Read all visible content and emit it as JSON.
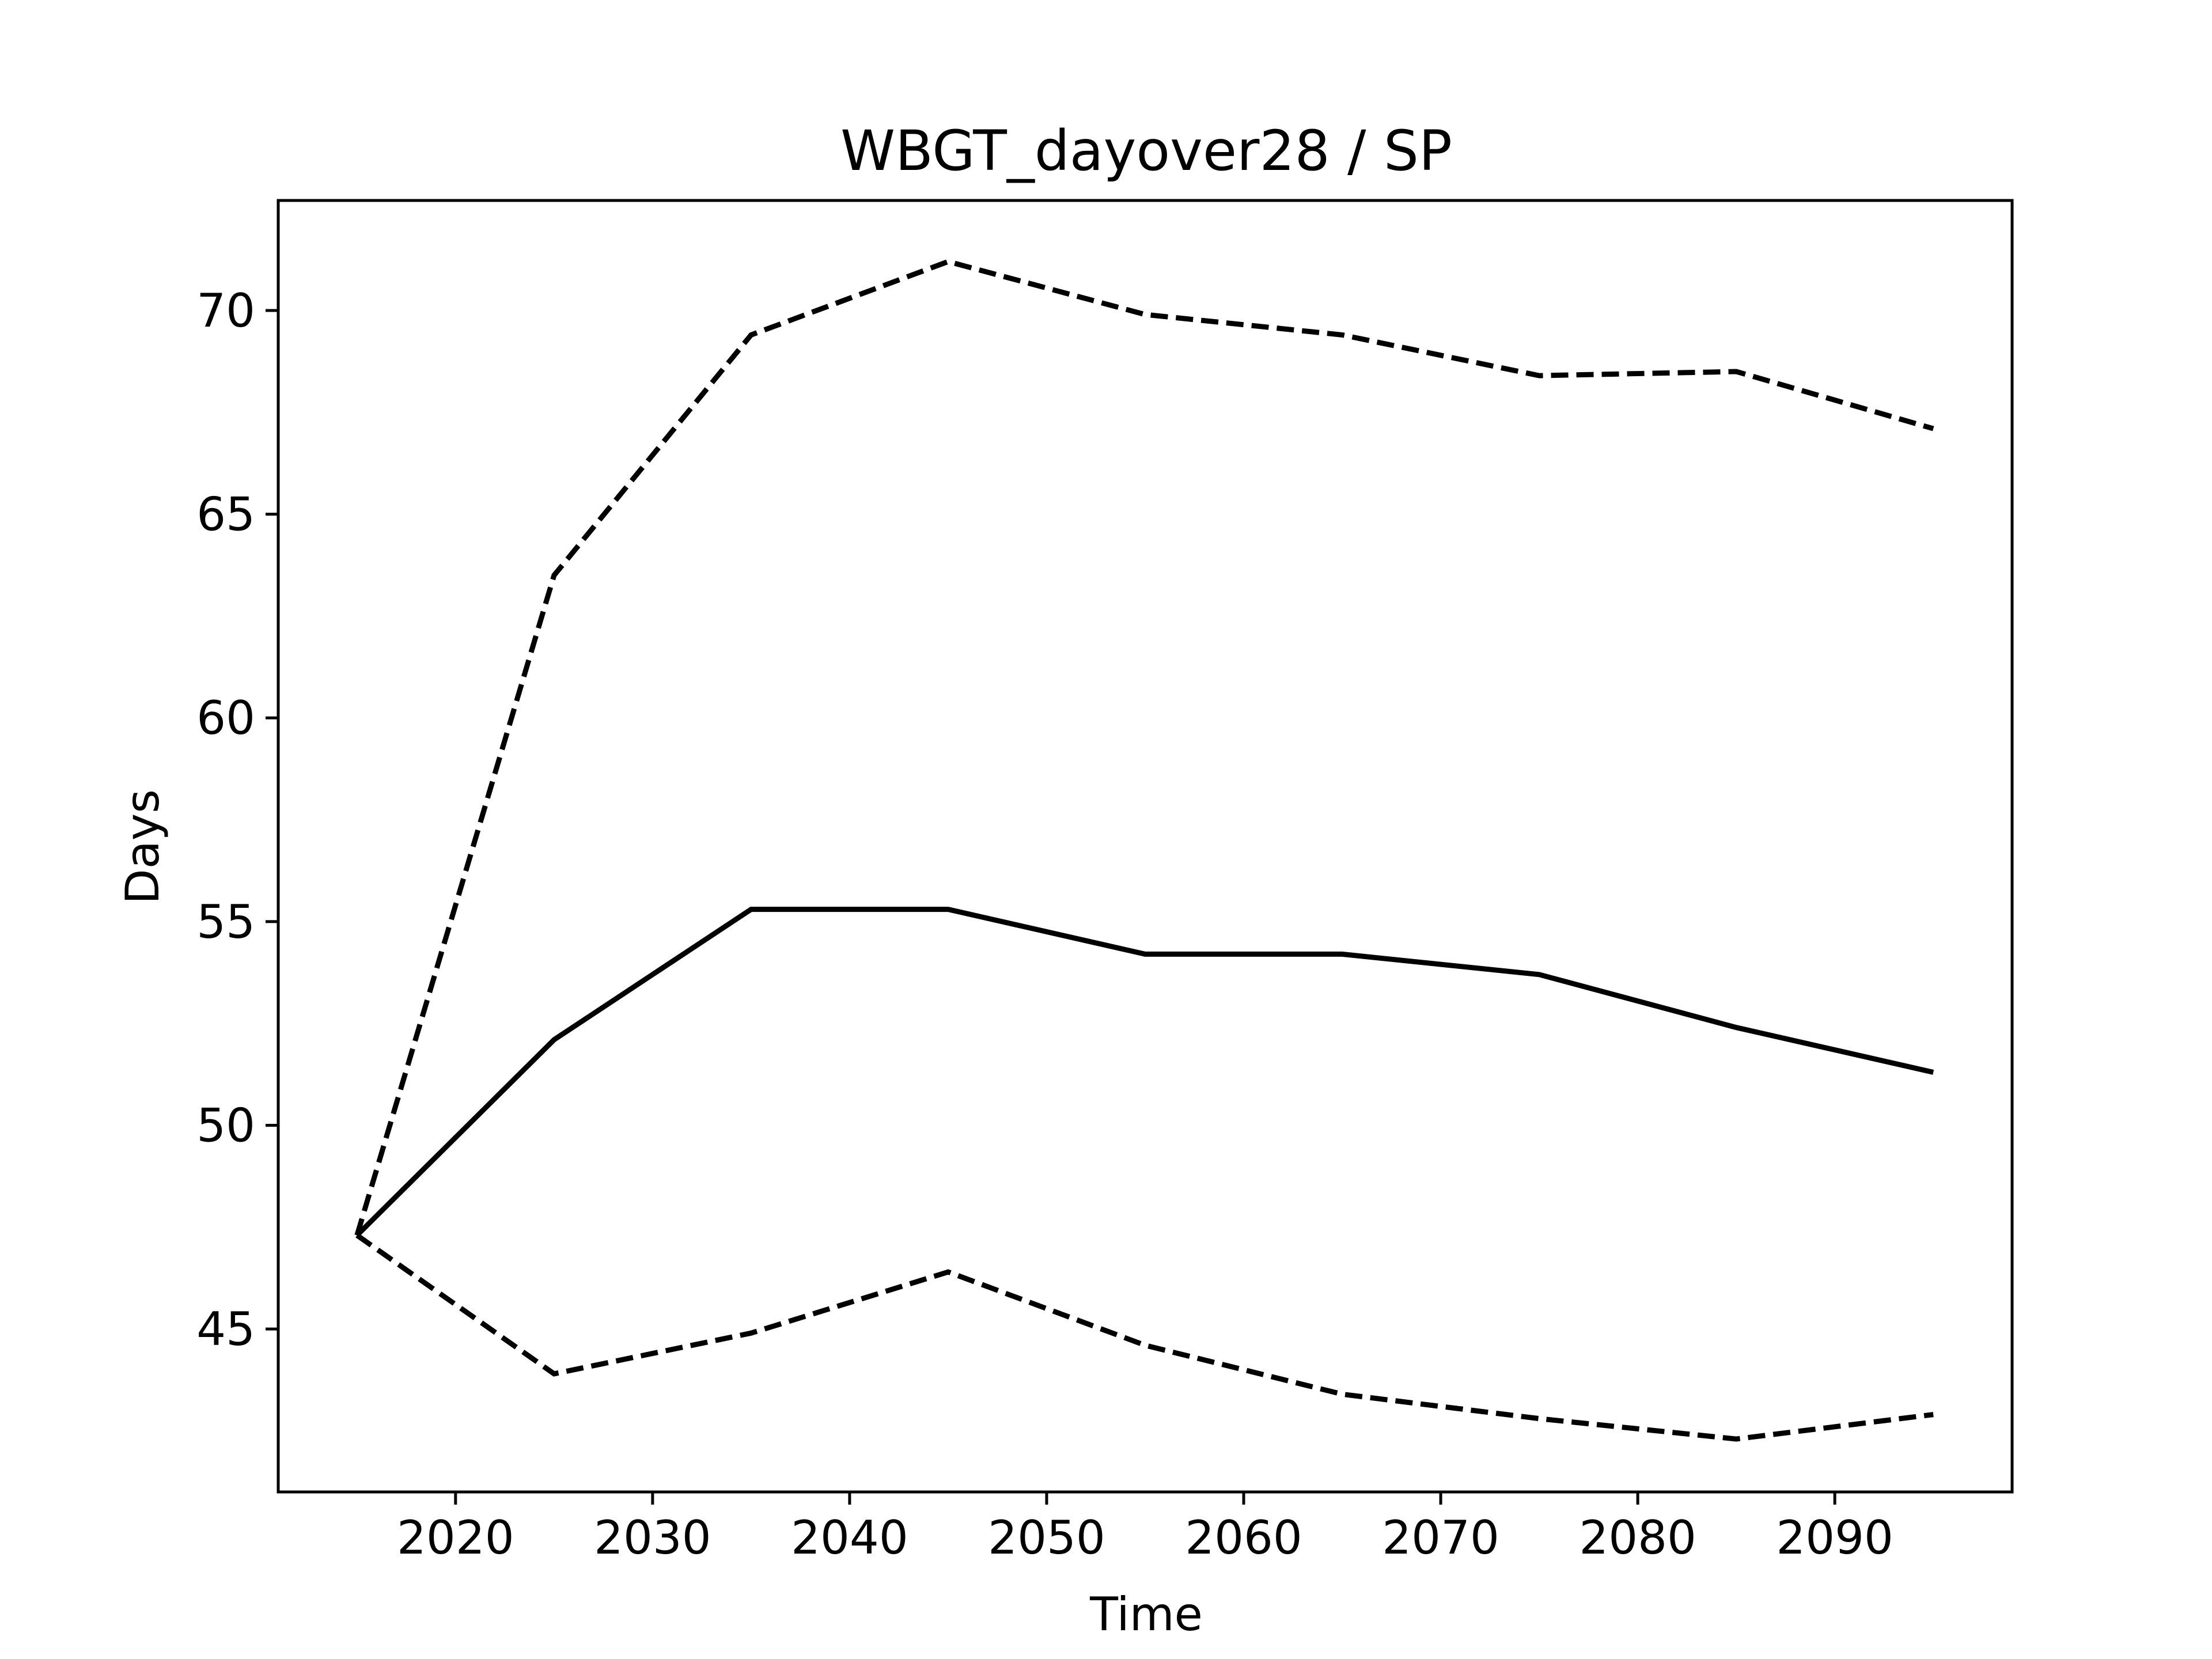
{
  "chart_data": {
    "type": "line",
    "title": "WBGT_dayover28 / SP",
    "xlabel": "Time",
    "ylabel": "Days",
    "xlim": [
      2011,
      2099
    ],
    "ylim": [
      41.0,
      72.7
    ],
    "x_ticks": [
      2020,
      2030,
      2040,
      2050,
      2060,
      2070,
      2080,
      2090
    ],
    "y_ticks": [
      45,
      50,
      55,
      60,
      65,
      70
    ],
    "grid": false,
    "legend": "none",
    "x": [
      2015,
      2025,
      2035,
      2045,
      2055,
      2065,
      2075,
      2085,
      2095
    ],
    "series": [
      {
        "style": "solid",
        "color": "#000000",
        "values": [
          47.3,
          52.1,
          55.3,
          55.3,
          54.2,
          54.2,
          53.7,
          52.4,
          51.3
        ]
      },
      {
        "style": "dashed",
        "color": "#000000",
        "values": [
          47.3,
          63.5,
          69.4,
          71.2,
          69.9,
          69.4,
          68.4,
          68.5,
          67.1
        ]
      },
      {
        "style": "dashed",
        "color": "#000000",
        "values": [
          47.3,
          43.9,
          44.9,
          46.4,
          44.6,
          43.4,
          42.8,
          42.3,
          42.9
        ]
      }
    ]
  }
}
